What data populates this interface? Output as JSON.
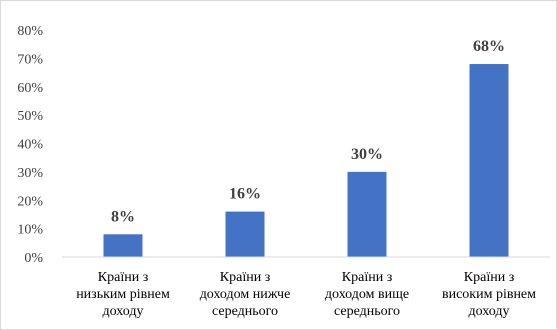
{
  "chart_data": {
    "type": "bar",
    "categories": [
      [
        "Країни з",
        "низьким рівнем",
        "доходу"
      ],
      [
        "Країни з",
        "доходом нижче",
        "середнього"
      ],
      [
        "Країни з",
        "доходом вище",
        "середнього"
      ],
      [
        "Країни з",
        "високим рівнем",
        "доходу"
      ]
    ],
    "values": [
      8,
      16,
      30,
      68
    ],
    "data_labels": [
      "8%",
      "16%",
      "30%",
      "68%"
    ],
    "y_ticks": [
      "0%",
      "10%",
      "20%",
      "30%",
      "40%",
      "50%",
      "60%",
      "70%",
      "80%"
    ],
    "ylim": [
      0,
      80
    ],
    "title": "",
    "xlabel": "",
    "ylabel": "",
    "grid": false,
    "legend": "none",
    "bar_color": "#4472c4",
    "axis_color": "#d9d9d9"
  }
}
